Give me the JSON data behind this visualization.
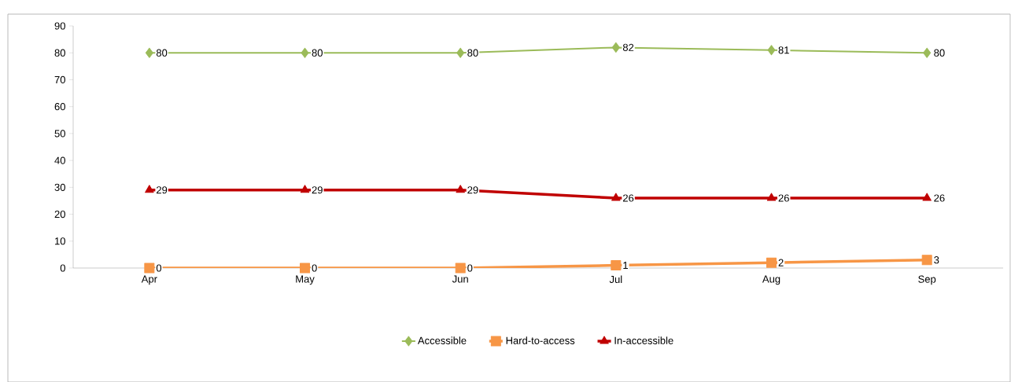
{
  "chart_data": {
    "type": "line",
    "categories": [
      "Apr",
      "May",
      "Jun",
      "Jul",
      "Aug",
      "Sep"
    ],
    "series": [
      {
        "name": "Accessible",
        "color": "#9bbb59",
        "marker": "diamond",
        "values": [
          80,
          80,
          80,
          82,
          81,
          80
        ]
      },
      {
        "name": "Hard-to-access",
        "color": "#f79646",
        "marker": "square",
        "values": [
          0,
          0,
          0,
          1,
          2,
          3
        ]
      },
      {
        "name": "In-accessible",
        "color": "#c00000",
        "marker": "triangle",
        "values": [
          29,
          29,
          29,
          26,
          26,
          26
        ]
      }
    ],
    "ylim": [
      0,
      90
    ],
    "yticks": [
      0,
      10,
      20,
      30,
      40,
      50,
      60,
      70,
      80,
      90
    ],
    "data_labels": true,
    "legend": "bottom",
    "grid": false,
    "line_style": "solid"
  }
}
